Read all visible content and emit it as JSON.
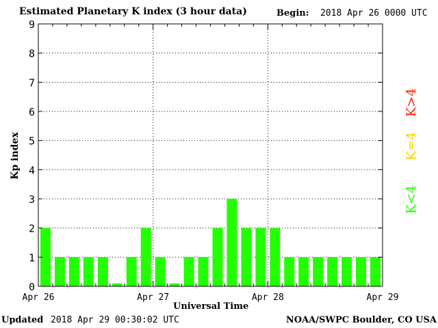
{
  "header": {
    "title": "Estimated Planetary K index (3 hour data)",
    "begin_label": "Begin:",
    "begin_value": "2018 Apr 26 0000 UTC"
  },
  "footer": {
    "updated_label": "Updated",
    "updated_value": "2018 Apr 29 00:30:02 UTC",
    "source": "NOAA/SWPC Boulder, CO USA"
  },
  "legend": {
    "high_label": "K>4",
    "mid_label": "K=4",
    "low_label": "K<4",
    "colors": {
      "high": "#ff2200",
      "mid": "#ffd200",
      "low": "#22ff00"
    }
  },
  "chart_data": {
    "type": "bar",
    "title": "Estimated Planetary K index (3 hour data)",
    "xlabel": "Universal Time",
    "ylabel": "Kp index",
    "ylim": [
      0,
      9
    ],
    "y_ticks": [
      "0",
      "1",
      "2",
      "3",
      "4",
      "5",
      "6",
      "7",
      "8",
      "9"
    ],
    "x_ticks": [
      "Apr 26",
      "Apr 27",
      "Apr 28",
      "Apr 29"
    ],
    "bars_per_day": 8,
    "grid": true,
    "bar_color": "#22ff00",
    "values": [
      2,
      1,
      1,
      1,
      1,
      0.1,
      1,
      2,
      1,
      0.1,
      1,
      1,
      2,
      3,
      2,
      2,
      2,
      1,
      1,
      1,
      1,
      1,
      1,
      1
    ]
  }
}
